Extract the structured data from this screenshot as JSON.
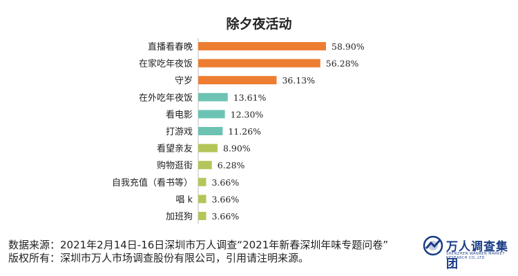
{
  "chart_data": {
    "type": "bar",
    "orientation": "horizontal",
    "title": "除夕夜活动",
    "categories": [
      "直播看春晚",
      "在家吃年夜饭",
      "守岁",
      "在外吃年夜饭",
      "看电影",
      "打游戏",
      "看望亲友",
      "购物逛街",
      "自我充值（看书等）",
      "唱 k",
      "加班狗"
    ],
    "values": [
      58.9,
      56.28,
      36.13,
      13.61,
      12.3,
      11.26,
      8.9,
      6.28,
      3.66,
      3.66,
      3.66
    ],
    "value_labels": [
      "58.90%",
      "56.28%",
      "36.13%",
      "13.61%",
      "12.30%",
      "11.26%",
      "8.90%",
      "6.28%",
      "3.66%",
      "3.66%",
      "3.66%"
    ],
    "colors": [
      "#ed7d31",
      "#ed7d31",
      "#ed7d31",
      "#6cc3b3",
      "#6cc3b3",
      "#6cc3b3",
      "#b5c55a",
      "#b5c55a",
      "#b5c55a",
      "#b5c55a",
      "#b5c55a"
    ],
    "xlim": [
      0,
      60
    ],
    "grid": false,
    "legend": "none"
  },
  "footer": {
    "source": "数据来源：2021年2月14日-16日深圳市万人调查“2021年新春深圳年味专题问卷”",
    "copyright": "版权所有：深圳市万人市场调查股份有限公司，引用请注明来源。"
  },
  "logo": {
    "text": "万人调查集团",
    "subtext": "SHENZHEN WANREN MARKET RESEARCH CO.,LTD"
  },
  "colors": {
    "axis": "#bfbfbf",
    "logo": "#1a3c86"
  }
}
